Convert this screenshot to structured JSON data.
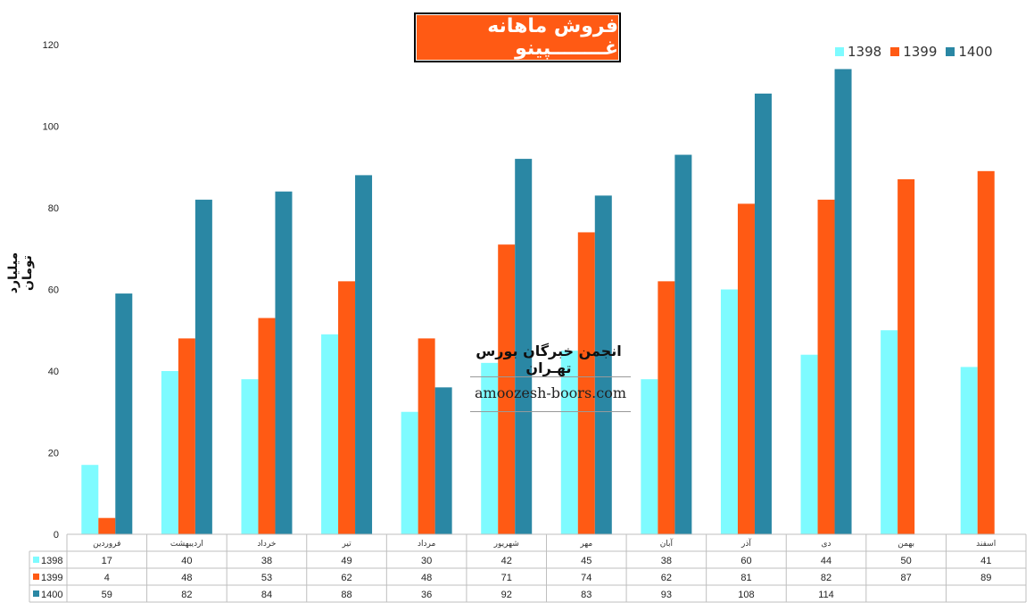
{
  "title": "فروش ماهانه غــــــــپینو",
  "ylabel": "میلیارد تومان",
  "watermark": {
    "title": "انجمن خبرگان بورس تهـران",
    "url": "amoozesh-boors.com"
  },
  "colors": {
    "1398": "#7efbff",
    "1399": "#ff5a14",
    "1400": "#2a87a4",
    "title_bg": "#ff5a14"
  },
  "chart_data": {
    "type": "bar",
    "categories": [
      "فروردین",
      "اردیبهشت",
      "خرداد",
      "تیر",
      "مرداد",
      "شهریور",
      "مهر",
      "آبان",
      "آذر",
      "دی",
      "بهمن",
      "اسفند"
    ],
    "series": [
      {
        "name": "1398",
        "values": [
          17,
          40,
          38,
          49,
          30,
          42,
          45,
          38,
          60,
          44,
          50,
          41
        ]
      },
      {
        "name": "1399",
        "values": [
          4,
          48,
          53,
          62,
          48,
          71,
          74,
          62,
          81,
          82,
          87,
          89
        ]
      },
      {
        "name": "1400",
        "values": [
          59,
          82,
          84,
          88,
          36,
          92,
          83,
          93,
          108,
          114,
          null,
          null
        ]
      }
    ],
    "yticks": [
      0,
      20,
      40,
      60,
      80,
      100,
      120
    ],
    "ylim": [
      0,
      120
    ],
    "legend_position": "top-right",
    "grid": false,
    "data_table": true
  }
}
